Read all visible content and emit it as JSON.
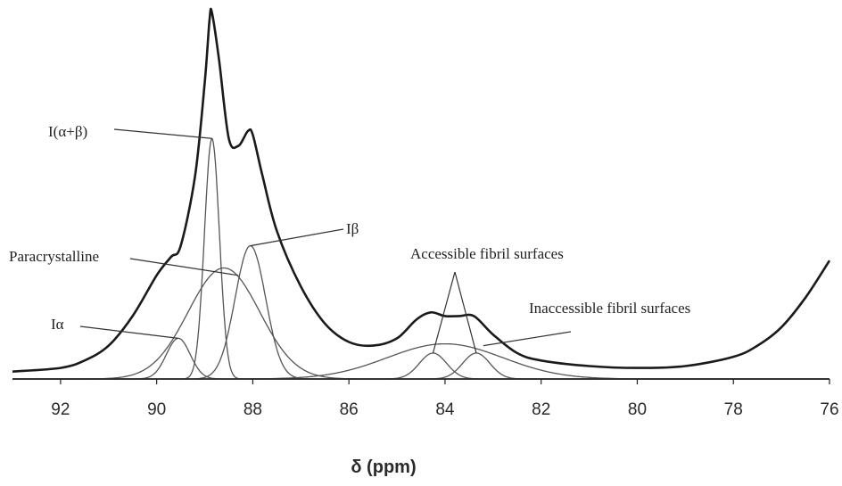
{
  "chart_data": {
    "type": "line",
    "title": "",
    "xlabel": "δ (ppm)",
    "ylabel": "",
    "xlim": [
      93,
      76
    ],
    "x_reversed": true,
    "ylim": [
      0,
      1.0
    ],
    "xticks": [
      92,
      90,
      88,
      86,
      84,
      82,
      80,
      78,
      76
    ],
    "grid": false,
    "legend": "none",
    "series": [
      {
        "x": [
          93,
          92,
          91.5,
          91,
          90.5,
          90,
          89.7,
          89.5,
          89.2,
          89.0,
          88.9,
          88.85,
          88.7,
          88.5,
          88.3,
          88.1,
          88.0,
          87.8,
          87.5,
          87.0,
          86.5,
          86.0,
          85.5,
          85.0,
          84.6,
          84.3,
          84.0,
          83.7,
          83.4,
          83.0,
          82.5,
          82.0,
          81.0,
          80.0,
          79.0,
          78.0,
          77.5,
          77.0,
          76.5,
          76.0
        ],
        "values": [
          0.02,
          0.03,
          0.05,
          0.09,
          0.17,
          0.28,
          0.33,
          0.36,
          0.55,
          0.8,
          0.97,
          0.99,
          0.86,
          0.65,
          0.63,
          0.67,
          0.66,
          0.55,
          0.4,
          0.25,
          0.15,
          0.1,
          0.09,
          0.11,
          0.16,
          0.18,
          0.17,
          0.17,
          0.17,
          0.12,
          0.07,
          0.05,
          0.035,
          0.03,
          0.035,
          0.06,
          0.09,
          0.14,
          0.22,
          0.32
        ]
      },
      {
        "center": 89.55,
        "height": 0.11,
        "width": 0.35
      },
      {
        "center": 88.85,
        "height": 0.65,
        "width": 0.22
      },
      {
        "center": 88.6,
        "height": 0.3,
        "width": 1.05
      },
      {
        "center": 88.05,
        "height": 0.36,
        "width": 0.45
      },
      {
        "center": 84.25,
        "height": 0.07,
        "width": 0.4
      },
      {
        "center": 83.35,
        "height": 0.07,
        "width": 0.4
      },
      {
        "center": 84.0,
        "height": 0.095,
        "width": 1.7
      }
    ],
    "annotations": [
      {
        "text": "I(α+β)",
        "x": 88.85,
        "y": 0.65
      },
      {
        "text": "Iβ",
        "x": 88.05,
        "y": 0.36
      },
      {
        "text": "Paracrystalline",
        "x": 88.3,
        "y": 0.28
      },
      {
        "text": "Iα",
        "x": 89.55,
        "y": 0.11
      },
      {
        "text": "Accessible fibril surfaces",
        "x": 83.8,
        "y": 0.08
      },
      {
        "text": "Inaccessible fibril surfaces",
        "x": 83.2,
        "y": 0.09
      }
    ]
  }
}
